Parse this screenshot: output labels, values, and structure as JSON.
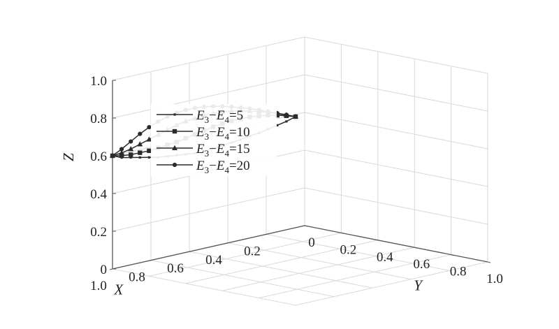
{
  "chart_data": {
    "type": "line",
    "projection": "3d",
    "axes": {
      "x": {
        "label": "X",
        "ticks": [
          "0.2",
          "0.4",
          "0.6",
          "0.8",
          "1.0"
        ],
        "range": [
          0,
          1
        ]
      },
      "y": {
        "label": "Y",
        "ticks": [
          "0",
          "0.2",
          "0.4",
          "0.6",
          "0.8",
          "1.0"
        ],
        "range": [
          0,
          1
        ]
      },
      "z": {
        "label": "Z",
        "ticks": [
          "0",
          "0.2",
          "0.4",
          "0.6",
          "0.8",
          "1.0"
        ],
        "range": [
          0,
          1
        ]
      }
    },
    "grid": true,
    "legend_position": "left",
    "series": [
      {
        "name": "E3−E4=5",
        "name_parts": {
          "e1": "E",
          "s1": "3",
          "e2": "E",
          "s2": "4",
          "val": "5"
        },
        "marker": "x",
        "points": [
          [
            1.0,
            0.0,
            0.6
          ],
          [
            1.0,
            0.05,
            0.6
          ],
          [
            1.0,
            0.1,
            0.61
          ],
          [
            1.0,
            0.15,
            0.62
          ],
          [
            1.0,
            0.2,
            0.63
          ],
          [
            1.0,
            0.25,
            0.64
          ],
          [
            1.0,
            0.3,
            0.655
          ],
          [
            1.0,
            0.35,
            0.67
          ],
          [
            1.0,
            0.4,
            0.685
          ],
          [
            1.0,
            0.45,
            0.7
          ],
          [
            1.0,
            0.5,
            0.72
          ],
          [
            1.0,
            0.55,
            0.745
          ],
          [
            1.0,
            0.6,
            0.77
          ],
          [
            1.0,
            0.65,
            0.795
          ],
          [
            1.0,
            0.7,
            0.82
          ],
          [
            1.0,
            0.75,
            0.85
          ],
          [
            1.0,
            0.8,
            0.875
          ],
          [
            1.0,
            0.85,
            0.905
          ],
          [
            1.0,
            0.9,
            0.935
          ],
          [
            1.0,
            0.95,
            0.965
          ],
          [
            1.0,
            1.0,
            1.0
          ]
        ]
      },
      {
        "name": "E3−E4=10",
        "name_parts": {
          "e1": "E",
          "s1": "3",
          "e2": "E",
          "s2": "4",
          "val": "10"
        },
        "marker": "square",
        "points": [
          [
            1.0,
            0.0,
            0.6
          ],
          [
            1.0,
            0.05,
            0.61
          ],
          [
            1.0,
            0.1,
            0.625
          ],
          [
            1.0,
            0.15,
            0.645
          ],
          [
            1.0,
            0.2,
            0.665
          ],
          [
            1.0,
            0.25,
            0.69
          ],
          [
            1.0,
            0.3,
            0.715
          ],
          [
            1.0,
            0.35,
            0.74
          ],
          [
            1.0,
            0.4,
            0.77
          ],
          [
            1.0,
            0.45,
            0.8
          ],
          [
            1.0,
            0.5,
            0.83
          ],
          [
            1.0,
            0.55,
            0.86
          ],
          [
            1.0,
            0.6,
            0.885
          ],
          [
            1.0,
            0.65,
            0.91
          ],
          [
            1.0,
            0.7,
            0.93
          ],
          [
            1.0,
            0.75,
            0.95
          ],
          [
            1.0,
            0.8,
            0.965
          ],
          [
            1.0,
            0.85,
            0.978
          ],
          [
            1.0,
            0.9,
            0.988
          ],
          [
            1.0,
            0.95,
            0.995
          ],
          [
            1.0,
            1.0,
            1.0
          ]
        ]
      },
      {
        "name": "E3−E4=15",
        "name_parts": {
          "e1": "E",
          "s1": "3",
          "e2": "E",
          "s2": "4",
          "val": "15"
        },
        "marker": "triangle",
        "points": [
          [
            1.0,
            0.0,
            0.6
          ],
          [
            1.0,
            0.05,
            0.625
          ],
          [
            1.0,
            0.1,
            0.655
          ],
          [
            1.0,
            0.15,
            0.69
          ],
          [
            1.0,
            0.2,
            0.725
          ],
          [
            1.0,
            0.25,
            0.76
          ],
          [
            1.0,
            0.3,
            0.795
          ],
          [
            1.0,
            0.35,
            0.83
          ],
          [
            1.0,
            0.4,
            0.86
          ],
          [
            1.0,
            0.45,
            0.885
          ],
          [
            1.0,
            0.5,
            0.91
          ],
          [
            1.0,
            0.55,
            0.93
          ],
          [
            1.0,
            0.6,
            0.948
          ],
          [
            1.0,
            0.65,
            0.962
          ],
          [
            1.0,
            0.7,
            0.973
          ],
          [
            1.0,
            0.75,
            0.982
          ],
          [
            1.0,
            0.8,
            0.989
          ],
          [
            1.0,
            0.85,
            0.994
          ],
          [
            1.0,
            0.9,
            0.997
          ],
          [
            1.0,
            0.95,
            0.999
          ],
          [
            1.0,
            1.0,
            1.0
          ]
        ]
      },
      {
        "name": "E3−E4=20",
        "name_parts": {
          "e1": "E",
          "s1": "3",
          "e2": "E",
          "s2": "4",
          "val": "20"
        },
        "marker": "circle",
        "points": [
          [
            1.0,
            0.0,
            0.6
          ],
          [
            1.0,
            0.05,
            0.645
          ],
          [
            1.0,
            0.1,
            0.695
          ],
          [
            1.0,
            0.15,
            0.745
          ],
          [
            1.0,
            0.2,
            0.79
          ],
          [
            1.0,
            0.25,
            0.83
          ],
          [
            1.0,
            0.3,
            0.865
          ],
          [
            1.0,
            0.35,
            0.895
          ],
          [
            1.0,
            0.4,
            0.92
          ],
          [
            1.0,
            0.45,
            0.94
          ],
          [
            1.0,
            0.5,
            0.956
          ],
          [
            1.0,
            0.55,
            0.968
          ],
          [
            1.0,
            0.6,
            0.978
          ],
          [
            1.0,
            0.65,
            0.985
          ],
          [
            1.0,
            0.7,
            0.99
          ],
          [
            1.0,
            0.75,
            0.994
          ],
          [
            1.0,
            0.8,
            0.997
          ],
          [
            1.0,
            0.85,
            0.998
          ],
          [
            1.0,
            0.9,
            0.999
          ],
          [
            1.0,
            0.95,
            1.0
          ],
          [
            1.0,
            1.0,
            1.0
          ]
        ]
      }
    ],
    "colors": {
      "line": "#2b2b2b",
      "grid": "#d9d9d9",
      "axis": "#555555"
    }
  }
}
